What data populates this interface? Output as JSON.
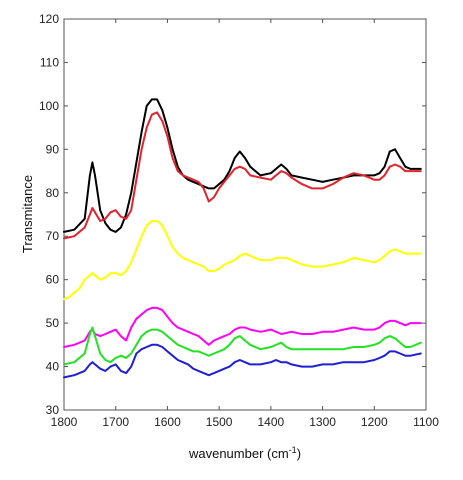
{
  "chart_data": {
    "type": "line",
    "title": "",
    "xlabel": "wavenumber (cm",
    "xlabel_sup": "-1",
    "xlabel_end": ")",
    "ylabel": "Transmitance",
    "xlim": [
      1800,
      1100
    ],
    "x_reversed": true,
    "ylim": [
      30,
      120
    ],
    "x_ticks": [
      "1800",
      "1700",
      "1600",
      "1500",
      "1400",
      "1300",
      "1200",
      "1100"
    ],
    "y_ticks": [
      "30",
      "40",
      "50",
      "60",
      "70",
      "80",
      "90",
      "100",
      "110",
      "120"
    ],
    "grid": false,
    "legend": "none",
    "series": [
      {
        "color": "#000000",
        "x": [
          1800,
          1780,
          1760,
          1750,
          1745,
          1740,
          1730,
          1720,
          1710,
          1700,
          1690,
          1680,
          1670,
          1660,
          1650,
          1640,
          1630,
          1620,
          1610,
          1600,
          1590,
          1580,
          1570,
          1560,
          1550,
          1540,
          1530,
          1520,
          1510,
          1500,
          1490,
          1480,
          1470,
          1460,
          1450,
          1440,
          1420,
          1400,
          1390,
          1380,
          1370,
          1360,
          1340,
          1320,
          1300,
          1280,
          1260,
          1240,
          1220,
          1200,
          1190,
          1180,
          1170,
          1160,
          1150,
          1140,
          1130,
          1110
        ],
        "y": [
          71,
          71.5,
          74,
          84,
          87,
          84,
          76,
          73,
          71.5,
          71,
          72,
          75,
          80,
          87,
          94,
          100,
          101.5,
          101.5,
          99,
          95,
          90,
          86,
          84,
          83,
          82.5,
          82,
          81.5,
          81,
          81,
          82,
          83,
          85,
          88,
          89.5,
          88,
          86,
          84,
          84.5,
          85.5,
          86.5,
          85.5,
          84,
          83.5,
          83,
          82.5,
          83,
          83.5,
          84,
          84,
          84,
          84.5,
          86,
          89.5,
          90,
          88,
          86,
          85.5,
          85.5
        ]
      },
      {
        "color": "#e3232c",
        "x": [
          1800,
          1780,
          1760,
          1750,
          1745,
          1740,
          1730,
          1720,
          1710,
          1700,
          1690,
          1680,
          1670,
          1660,
          1650,
          1640,
          1630,
          1620,
          1610,
          1600,
          1590,
          1580,
          1570,
          1560,
          1550,
          1540,
          1530,
          1520,
          1510,
          1500,
          1490,
          1480,
          1470,
          1460,
          1450,
          1440,
          1420,
          1400,
          1390,
          1380,
          1370,
          1360,
          1340,
          1320,
          1300,
          1280,
          1260,
          1240,
          1220,
          1200,
          1190,
          1180,
          1170,
          1160,
          1150,
          1140,
          1130,
          1110
        ],
        "y": [
          69.5,
          70,
          72,
          75,
          76.5,
          75.5,
          73.5,
          74,
          75.5,
          76,
          74.5,
          74,
          76,
          83,
          90,
          95,
          98,
          98.5,
          96.5,
          93,
          88,
          85,
          84,
          83.5,
          83,
          82.5,
          81,
          78,
          79,
          81,
          82.5,
          84,
          85.5,
          86,
          85.5,
          84,
          83.5,
          83,
          84,
          85,
          84.5,
          83.5,
          82,
          81,
          81,
          82,
          83.5,
          84.5,
          84,
          83,
          83,
          84,
          86,
          86.5,
          86,
          85,
          85,
          85
        ]
      },
      {
        "color": "#ffff00",
        "x": [
          1800,
          1790,
          1780,
          1770,
          1760,
          1750,
          1745,
          1740,
          1730,
          1720,
          1710,
          1700,
          1690,
          1680,
          1670,
          1660,
          1650,
          1640,
          1630,
          1620,
          1610,
          1600,
          1590,
          1580,
          1570,
          1560,
          1550,
          1540,
          1530,
          1520,
          1510,
          1500,
          1490,
          1480,
          1470,
          1460,
          1450,
          1440,
          1430,
          1420,
          1410,
          1400,
          1390,
          1380,
          1370,
          1360,
          1340,
          1320,
          1300,
          1280,
          1260,
          1240,
          1220,
          1200,
          1190,
          1180,
          1170,
          1160,
          1150,
          1140,
          1130,
          1110
        ],
        "y": [
          55.5,
          56,
          57,
          58,
          60,
          61,
          61.5,
          61,
          60,
          60.5,
          61.5,
          61.5,
          61,
          62,
          64,
          67,
          70,
          72.5,
          73.5,
          73.5,
          72.5,
          70,
          67.5,
          66,
          65,
          64.5,
          64,
          63.5,
          63,
          62,
          62,
          62.5,
          63.5,
          64,
          64.5,
          65.5,
          66,
          65.5,
          65,
          64.5,
          64.5,
          64.5,
          65,
          65,
          65,
          64.5,
          63.5,
          63,
          63,
          63.5,
          64,
          65,
          64.5,
          64,
          64.5,
          65.5,
          66.5,
          67,
          66.5,
          66,
          66,
          66
        ]
      },
      {
        "color": "#ff00ff",
        "x": [
          1800,
          1780,
          1760,
          1750,
          1745,
          1740,
          1730,
          1720,
          1710,
          1700,
          1690,
          1680,
          1670,
          1660,
          1650,
          1640,
          1630,
          1620,
          1610,
          1600,
          1590,
          1580,
          1570,
          1560,
          1550,
          1540,
          1530,
          1520,
          1510,
          1500,
          1490,
          1480,
          1470,
          1460,
          1450,
          1440,
          1420,
          1400,
          1380,
          1360,
          1340,
          1320,
          1300,
          1280,
          1260,
          1240,
          1220,
          1200,
          1190,
          1180,
          1170,
          1160,
          1150,
          1140,
          1130,
          1110
        ],
        "y": [
          44.5,
          45,
          46,
          48,
          48.5,
          47.5,
          47,
          47.5,
          48,
          48.5,
          47,
          46,
          49,
          51,
          52,
          53,
          53.5,
          53.5,
          53,
          51.5,
          50,
          49,
          48.5,
          48,
          47.5,
          47,
          46,
          45,
          46,
          46.5,
          47,
          47.5,
          48.5,
          49,
          49,
          48.5,
          48,
          48.5,
          47.5,
          48,
          47.5,
          47.5,
          48,
          48,
          48.5,
          49,
          48.5,
          48.5,
          49,
          50,
          50.5,
          50.5,
          50,
          49.5,
          50,
          50
        ]
      },
      {
        "color": "#22e322",
        "x": [
          1800,
          1780,
          1760,
          1750,
          1745,
          1740,
          1730,
          1720,
          1710,
          1700,
          1690,
          1680,
          1670,
          1660,
          1650,
          1640,
          1630,
          1620,
          1610,
          1600,
          1590,
          1580,
          1570,
          1560,
          1550,
          1540,
          1530,
          1520,
          1510,
          1500,
          1490,
          1480,
          1470,
          1460,
          1450,
          1440,
          1420,
          1400,
          1390,
          1380,
          1370,
          1360,
          1340,
          1320,
          1300,
          1280,
          1260,
          1240,
          1220,
          1200,
          1190,
          1180,
          1170,
          1160,
          1150,
          1140,
          1130,
          1110
        ],
        "y": [
          40.5,
          41,
          43,
          47.5,
          49,
          47,
          43,
          41.5,
          41,
          42,
          42.5,
          42,
          43,
          45,
          47,
          48,
          48.5,
          48.5,
          48,
          47,
          46,
          45,
          44.5,
          44,
          43.5,
          43.5,
          43,
          42.5,
          43,
          43.5,
          44,
          45,
          46.5,
          47,
          46,
          45,
          44,
          44.5,
          45,
          45.5,
          44.5,
          44,
          44,
          44,
          44,
          44,
          44,
          44.5,
          44.5,
          45,
          45.5,
          46.5,
          47,
          46.5,
          45.5,
          44.5,
          44.5,
          45.5
        ]
      },
      {
        "color": "#1f1fd6",
        "x": [
          1800,
          1780,
          1760,
          1750,
          1745,
          1740,
          1730,
          1720,
          1710,
          1700,
          1690,
          1680,
          1670,
          1660,
          1650,
          1640,
          1630,
          1620,
          1610,
          1600,
          1590,
          1580,
          1570,
          1560,
          1550,
          1540,
          1530,
          1520,
          1510,
          1500,
          1490,
          1480,
          1470,
          1460,
          1450,
          1440,
          1420,
          1400,
          1390,
          1380,
          1370,
          1360,
          1340,
          1320,
          1300,
          1280,
          1260,
          1240,
          1220,
          1200,
          1190,
          1180,
          1170,
          1160,
          1150,
          1140,
          1130,
          1110
        ],
        "y": [
          37.5,
          38,
          39,
          40.5,
          41,
          40.5,
          39.5,
          39,
          40,
          40.5,
          39,
          38.5,
          40,
          43,
          44,
          44.5,
          45,
          45,
          44.5,
          43.5,
          42.5,
          41.5,
          41,
          40.5,
          39.5,
          39,
          38.5,
          38,
          38.5,
          39,
          39.5,
          40,
          41,
          41.5,
          41,
          40.5,
          40.5,
          41,
          41.5,
          41,
          41,
          40.5,
          40,
          40,
          40.5,
          40.5,
          41,
          41,
          41,
          41.5,
          42,
          42.5,
          43.5,
          43.5,
          43,
          42.5,
          42.5,
          43
        ]
      }
    ]
  }
}
